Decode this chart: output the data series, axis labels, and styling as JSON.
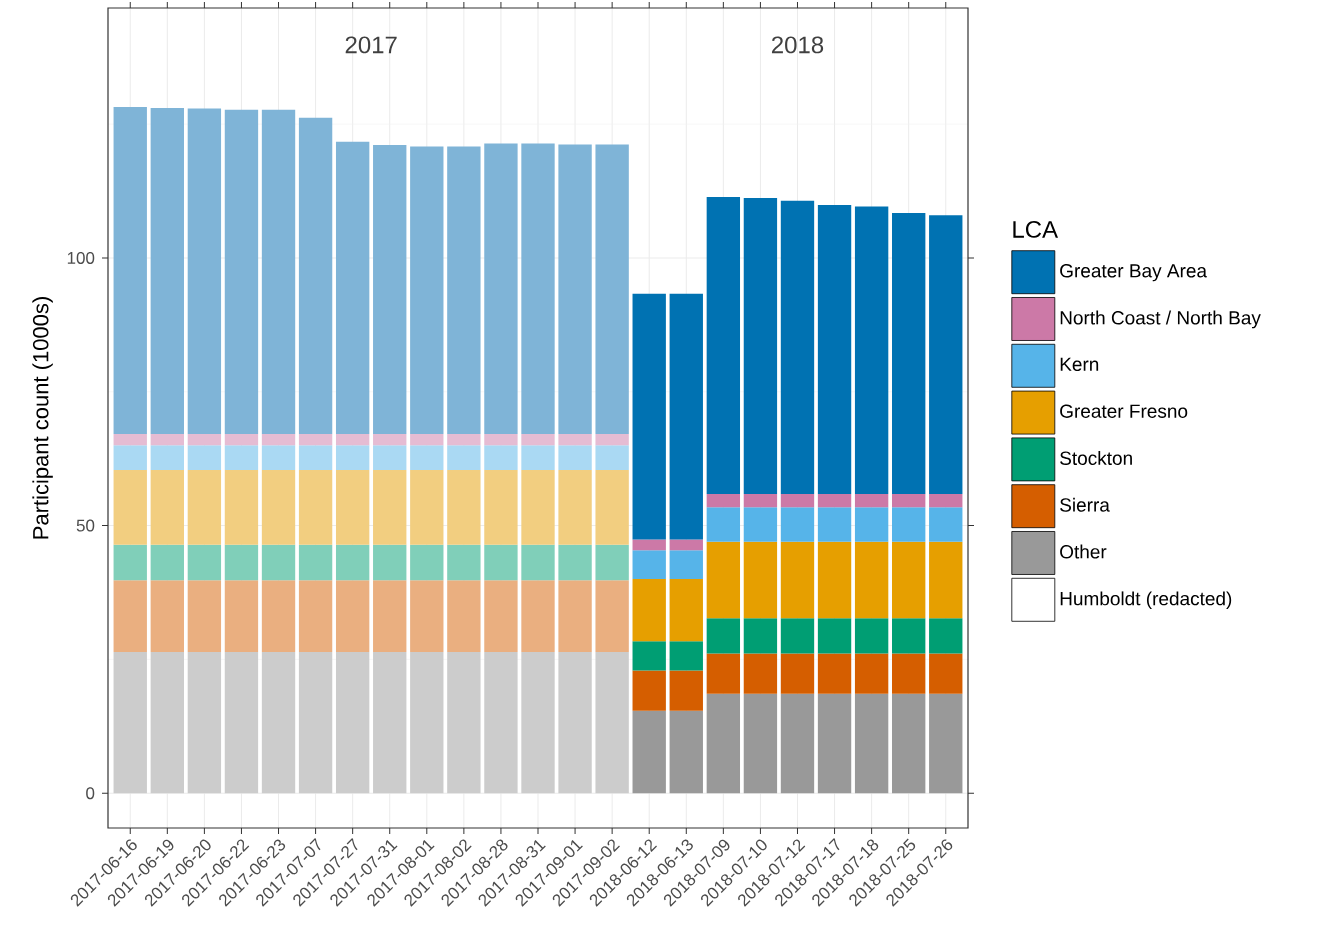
{
  "chart_data": {
    "type": "bar",
    "stacked": true,
    "ylabel": "Participant count (1000s)",
    "legend_title": "LCA",
    "legend": "right",
    "grid": true,
    "annotations": [
      "2017",
      "2018"
    ],
    "categories": [
      "2017-06-16",
      "2017-06-19",
      "2017-06-20",
      "2017-06-22",
      "2017-06-23",
      "2017-07-07",
      "2017-07-27",
      "2017-07-31",
      "2017-08-01",
      "2017-08-02",
      "2017-08-28",
      "2017-08-31",
      "2017-09-01",
      "2017-09-02",
      "2018-06-12",
      "2018-06-13",
      "2018-07-09",
      "2018-07-10",
      "2018-07-12",
      "2018-07-17",
      "2018-07-18",
      "2018-07-25",
      "2018-07-26"
    ],
    "ylim": [
      -6.5,
      146.7
    ],
    "yticks": [
      0,
      {
        "value": 25,
        "label": null
      },
      50,
      {
        "value": 75,
        "label": null
      },
      100,
      {
        "value": 125,
        "label": null
      }
    ],
    "series": [
      {
        "name": "Other",
        "color": "#999999",
        "colors": [
          "#cccccc",
          "#cccccc",
          "#cccccc",
          "#cccccc",
          "#cccccc",
          "#cccccc",
          "#cccccc",
          "#cccccc",
          "#cccccc",
          "#cccccc",
          "#cccccc",
          "#cccccc",
          "#cccccc",
          "#cccccc",
          "#999999",
          "#999999",
          "#999999",
          "#999999",
          "#999999",
          "#999999",
          "#999999",
          "#999999",
          "#999999"
        ],
        "values": [
          26.4,
          26.4,
          26.4,
          26.4,
          26.4,
          26.4,
          26.4,
          26.4,
          26.4,
          26.4,
          26.4,
          26.4,
          26.4,
          26.4,
          15.4,
          15.4,
          18.6,
          18.6,
          18.6,
          18.6,
          18.6,
          18.6,
          18.6
        ]
      },
      {
        "name": "Sierra",
        "color": "#d55e00",
        "colors": [
          "#eaaf80",
          "#eaaf80",
          "#eaaf80",
          "#eaaf80",
          "#eaaf80",
          "#eaaf80",
          "#eaaf80",
          "#eaaf80",
          "#eaaf80",
          "#eaaf80",
          "#eaaf80",
          "#eaaf80",
          "#eaaf80",
          "#eaaf80",
          "#d55e00",
          "#d55e00",
          "#d55e00",
          "#d55e00",
          "#d55e00",
          "#d55e00",
          "#d55e00",
          "#d55e00",
          "#d55e00"
        ],
        "values": [
          13.4,
          13.4,
          13.4,
          13.4,
          13.4,
          13.4,
          13.4,
          13.4,
          13.4,
          13.4,
          13.4,
          13.4,
          13.4,
          13.4,
          7.5,
          7.5,
          7.5,
          7.5,
          7.5,
          7.5,
          7.5,
          7.5,
          7.5
        ]
      },
      {
        "name": "Stockton",
        "color": "#009e73",
        "colors": [
          "#80cfb9",
          "#80cfb9",
          "#80cfb9",
          "#80cfb9",
          "#80cfb9",
          "#80cfb9",
          "#80cfb9",
          "#80cfb9",
          "#80cfb9",
          "#80cfb9",
          "#80cfb9",
          "#80cfb9",
          "#80cfb9",
          "#80cfb9",
          "#009e73",
          "#009e73",
          "#009e73",
          "#009e73",
          "#009e73",
          "#009e73",
          "#009e73",
          "#009e73",
          "#009e73"
        ],
        "values": [
          6.6,
          6.6,
          6.6,
          6.6,
          6.6,
          6.6,
          6.6,
          6.6,
          6.6,
          6.6,
          6.6,
          6.6,
          6.6,
          6.6,
          5.5,
          5.5,
          6.6,
          6.6,
          6.6,
          6.6,
          6.6,
          6.6,
          6.6
        ]
      },
      {
        "name": "Greater Fresno",
        "color": "#e69f00",
        "colors": [
          "#f2ce80",
          "#f2ce80",
          "#f2ce80",
          "#f2ce80",
          "#f2ce80",
          "#f2ce80",
          "#f2ce80",
          "#f2ce80",
          "#f2ce80",
          "#f2ce80",
          "#f2ce80",
          "#f2ce80",
          "#f2ce80",
          "#f2ce80",
          "#e69f00",
          "#e69f00",
          "#e69f00",
          "#e69f00",
          "#e69f00",
          "#e69f00",
          "#e69f00",
          "#e69f00",
          "#e69f00"
        ],
        "values": [
          14.0,
          14.0,
          14.0,
          14.0,
          14.0,
          14.0,
          14.0,
          14.0,
          14.0,
          14.0,
          14.0,
          14.0,
          14.0,
          14.0,
          11.6,
          11.6,
          14.3,
          14.3,
          14.3,
          14.3,
          14.3,
          14.3,
          14.3
        ]
      },
      {
        "name": "Kern",
        "color": "#56b4e9",
        "colors": [
          "#aad9f3",
          "#aad9f3",
          "#aad9f3",
          "#aad9f3",
          "#aad9f3",
          "#aad9f3",
          "#aad9f3",
          "#aad9f3",
          "#aad9f3",
          "#aad9f3",
          "#aad9f3",
          "#aad9f3",
          "#aad9f3",
          "#aad9f3",
          "#56b4e9",
          "#56b4e9",
          "#56b4e9",
          "#56b4e9",
          "#56b4e9",
          "#56b4e9",
          "#56b4e9",
          "#56b4e9",
          "#56b4e9"
        ],
        "values": [
          4.6,
          4.6,
          4.6,
          4.6,
          4.6,
          4.6,
          4.6,
          4.6,
          4.6,
          4.6,
          4.6,
          4.6,
          4.6,
          4.6,
          5.4,
          5.4,
          6.4,
          6.4,
          6.4,
          6.4,
          6.4,
          6.4,
          6.4
        ]
      },
      {
        "name": "North Coast / North Bay",
        "color": "#cc79a7",
        "colors": [
          "#e5bcd3",
          "#e5bcd3",
          "#e5bcd3",
          "#e5bcd3",
          "#e5bcd3",
          "#e5bcd3",
          "#e5bcd3",
          "#e5bcd3",
          "#e5bcd3",
          "#e5bcd3",
          "#e5bcd3",
          "#e5bcd3",
          "#e5bcd3",
          "#e5bcd3",
          "#cc79a7",
          "#cc79a7",
          "#cc79a7",
          "#cc79a7",
          "#cc79a7",
          "#cc79a7",
          "#cc79a7",
          "#cc79a7",
          "#cc79a7"
        ],
        "values": [
          2.1,
          2.1,
          2.1,
          2.1,
          2.1,
          2.1,
          2.1,
          2.1,
          2.1,
          2.1,
          2.1,
          2.1,
          2.1,
          2.1,
          2.0,
          2.0,
          2.5,
          2.5,
          2.5,
          2.5,
          2.5,
          2.5,
          2.5
        ]
      },
      {
        "name": "Greater Bay Area",
        "color": "#0072b2",
        "colors": [
          "#7fb4d7",
          "#7fb4d7",
          "#7fb4d7",
          "#7fb4d7",
          "#7fb4d7",
          "#7fb4d7",
          "#7fb4d7",
          "#7fb4d7",
          "#7fb4d7",
          "#7fb4d7",
          "#7fb4d7",
          "#7fb4d7",
          "#7fb4d7",
          "#7fb4d7",
          "#0072b2",
          "#0072b2",
          "#0072b2",
          "#0072b2",
          "#0072b2",
          "#0072b2",
          "#0072b2",
          "#0072b2",
          "#0072b2"
        ],
        "values": [
          61.1,
          60.9,
          60.8,
          60.6,
          60.6,
          59.1,
          54.6,
          54.0,
          53.7,
          53.7,
          54.3,
          54.3,
          54.1,
          54.1,
          45.9,
          45.9,
          55.5,
          55.3,
          54.8,
          54.0,
          53.7,
          52.5,
          52.1
        ]
      },
      {
        "name": "Humboldt (redacted)",
        "values": [
          null,
          null,
          null,
          null,
          null,
          null,
          null,
          null,
          null,
          null,
          null,
          null,
          null,
          null,
          null,
          null,
          null,
          null,
          null,
          null,
          null,
          null,
          null
        ]
      }
    ]
  }
}
